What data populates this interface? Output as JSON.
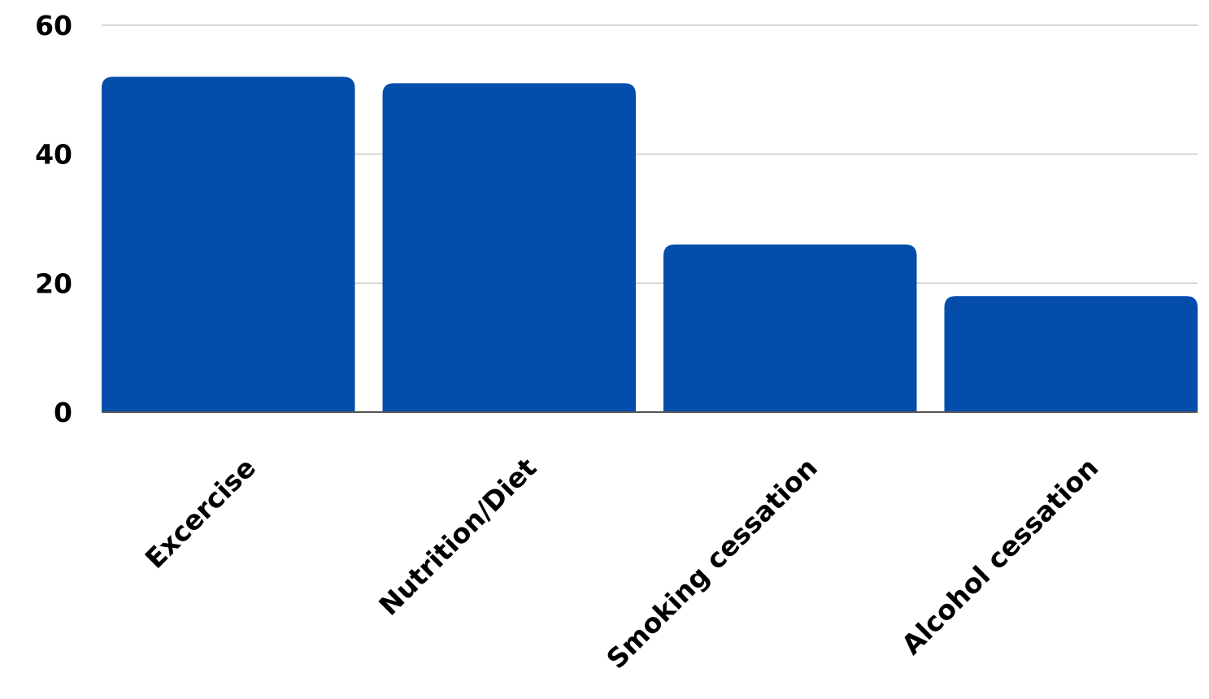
{
  "chart_data": {
    "type": "bar",
    "title": "",
    "xlabel": "",
    "ylabel": "",
    "categories": [
      "Excercise",
      "Nutrition/Diet",
      "Smoking cessation",
      "Alcohol cessation"
    ],
    "values": [
      52,
      51,
      26,
      18
    ],
    "ylim": [
      0,
      60
    ],
    "yticks": [
      0,
      20,
      40,
      60
    ],
    "grid": true,
    "legend": "none",
    "bar_color": "#044DAA",
    "grid_color": "#C8C8C8",
    "axis_color": "#555555"
  }
}
